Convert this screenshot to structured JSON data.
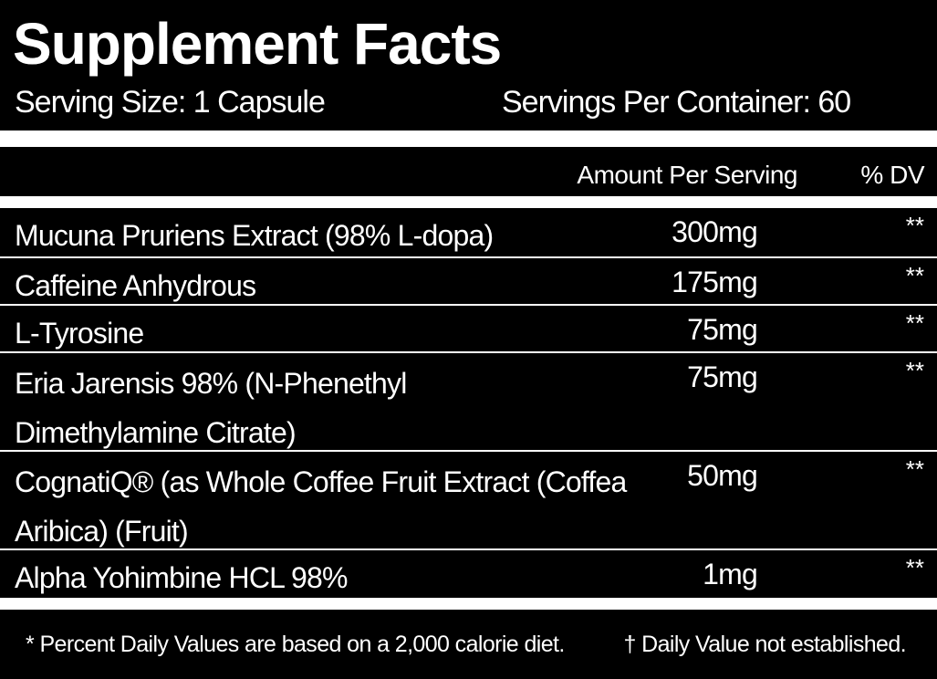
{
  "title": "Supplement Facts",
  "serving_size": "Serving Size: 1 Capsule",
  "servings_per_container": "Servings Per Container: 60",
  "header": {
    "amount": "Amount Per Serving",
    "dv": "% DV"
  },
  "rows": [
    {
      "name": "Mucuna Pruriens Extract (98% L-dopa)",
      "amount": "300mg",
      "dv": "**"
    },
    {
      "name": "Caffeine Anhydrous",
      "amount": "175mg",
      "dv": "**"
    },
    {
      "name": "L-Tyrosine",
      "amount": "75mg",
      "dv": "**"
    },
    {
      "name": "Eria Jarensis 98% (N-Phenethyl Dimethylamine Citrate)",
      "amount": "75mg",
      "dv": "**"
    },
    {
      "name": "CognatiQ® (as Whole Coffee Fruit Extract (Coffea Aribica) (Fruit)",
      "amount": "50mg",
      "dv": "**"
    },
    {
      "name": "Alpha Yohimbine HCL 98%",
      "amount": "1mg",
      "dv": "**"
    }
  ],
  "footnotes": {
    "daily_values": "* Percent Daily Values are based on a 2,000 calorie diet.",
    "not_established": "† Daily Value not established."
  }
}
